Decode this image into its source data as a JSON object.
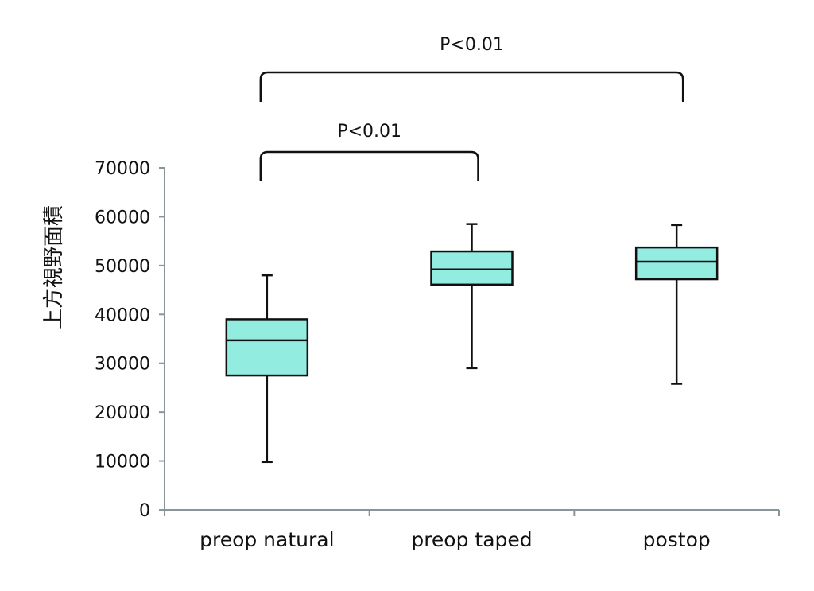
{
  "chart_data": {
    "type": "box",
    "title": "",
    "xlabel": "",
    "ylabel": "上方視野面積",
    "ylim": [
      0,
      70000
    ],
    "yticks": [
      0,
      10000,
      20000,
      30000,
      40000,
      50000,
      60000,
      70000
    ],
    "ytick_labels": [
      "0",
      "10000",
      "20000",
      "30000",
      "40000",
      "50000",
      "60000",
      "70000"
    ],
    "grid": false,
    "legend": "none",
    "box_color": "#93ece0",
    "categories": [
      "preop natural",
      "preop taped",
      "postop"
    ],
    "boxes": [
      {
        "category": "preop natural",
        "min": 9800,
        "q1": 27500,
        "median": 34700,
        "q3": 39000,
        "max": 48000
      },
      {
        "category": "preop taped",
        "min": 29000,
        "q1": 46100,
        "median": 49200,
        "q3": 52900,
        "max": 58500
      },
      {
        "category": "postop",
        "min": 25800,
        "q1": 47200,
        "median": 50800,
        "q3": 53700,
        "max": 58300
      }
    ],
    "annotations": [
      {
        "from": "preop natural",
        "to": "postop",
        "text": "P<0.01"
      },
      {
        "from": "preop natural",
        "to": "preop taped",
        "text": "P<0.01"
      }
    ]
  }
}
